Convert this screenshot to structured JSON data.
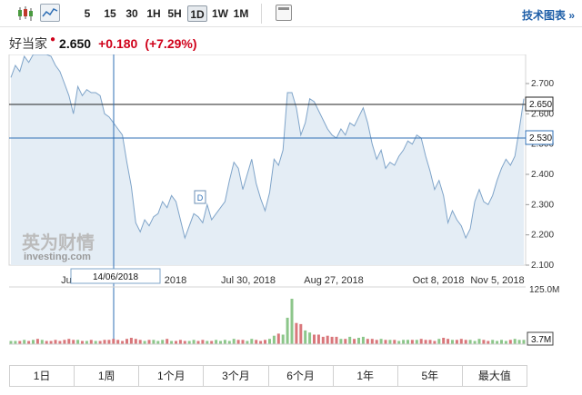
{
  "toolbar": {
    "intervals": [
      "5",
      "15",
      "30",
      "1H",
      "5H",
      "1D",
      "1W",
      "1M"
    ],
    "active_interval": "1D",
    "tech_chart_link": "技术图表 »"
  },
  "quote": {
    "name": "好当家",
    "price": "2.650",
    "change": "+0.180",
    "change_pct": "(+7.29%)",
    "up_color": "#d0021b"
  },
  "watermark": {
    "text": "英为财情",
    "sub": "investing.com"
  },
  "crosshair": {
    "date_label": "14/06/2018",
    "price_label": "2.530"
  },
  "last_price_label": "2.650",
  "marker_label": "D",
  "range_tabs": [
    "1日",
    "1周",
    "1个月",
    "3个月",
    "6个月",
    "1年",
    "5年",
    "最大值"
  ],
  "chart_data": {
    "type": "area",
    "price_axis": {
      "ticks": [
        "2.700",
        "2.600",
        "2.500",
        "2.400",
        "2.300",
        "2.200",
        "2.100"
      ],
      "ylim": [
        2.1,
        2.7
      ]
    },
    "x_tick_labels": [
      "Jun",
      "2018",
      "Jul 30, 2018",
      "Aug 27, 2018",
      "Oct 8, 2018",
      "Nov 5, 2018"
    ],
    "volume_axis": {
      "ticks": [
        "125.0M",
        "3.7M"
      ]
    },
    "price_series": [
      2.72,
      2.76,
      2.74,
      2.79,
      2.77,
      2.82,
      2.8,
      2.84,
      2.81,
      2.79,
      2.76,
      2.74,
      2.7,
      2.66,
      2.6,
      2.69,
      2.66,
      2.68,
      2.67,
      2.67,
      2.66,
      2.6,
      2.59,
      2.57,
      2.55,
      2.53,
      2.44,
      2.36,
      2.24,
      2.21,
      2.25,
      2.23,
      2.26,
      2.27,
      2.31,
      2.29,
      2.33,
      2.31,
      2.25,
      2.19,
      2.23,
      2.27,
      2.26,
      2.24,
      2.3,
      2.25,
      2.27,
      2.29,
      2.31,
      2.38,
      2.44,
      2.42,
      2.35,
      2.4,
      2.45,
      2.37,
      2.32,
      2.28,
      2.34,
      2.45,
      2.43,
      2.48,
      2.67,
      2.67,
      2.62,
      2.53,
      2.57,
      2.65,
      2.64,
      2.61,
      2.58,
      2.55,
      2.53,
      2.52,
      2.55,
      2.53,
      2.57,
      2.56,
      2.59,
      2.62,
      2.57,
      2.5,
      2.45,
      2.48,
      2.42,
      2.44,
      2.43,
      2.46,
      2.48,
      2.51,
      2.5,
      2.53,
      2.52,
      2.46,
      2.41,
      2.35,
      2.38,
      2.33,
      2.24,
      2.28,
      2.25,
      2.23,
      2.19,
      2.22,
      2.31,
      2.35,
      2.31,
      2.3,
      2.33,
      2.38,
      2.42,
      2.45,
      2.43,
      2.46,
      2.55,
      2.65
    ],
    "volume_series": [
      3,
      3,
      3,
      4,
      3,
      4,
      5,
      4,
      3,
      3,
      4,
      3,
      4,
      5,
      4,
      4,
      3,
      3,
      4,
      3,
      3,
      4,
      4,
      5,
      4,
      3,
      5,
      6,
      5,
      4,
      3,
      4,
      4,
      3,
      4,
      5,
      3,
      3,
      4,
      3,
      3,
      4,
      3,
      4,
      3,
      3,
      4,
      3,
      4,
      3,
      5,
      4,
      4,
      3,
      5,
      4,
      3,
      4,
      5,
      8,
      10,
      9,
      25,
      43,
      20,
      19,
      13,
      11,
      9,
      9,
      7,
      8,
      7,
      7,
      5,
      5,
      7,
      5,
      6,
      7,
      5,
      5,
      4,
      5,
      4,
      4,
      4,
      3,
      4,
      4,
      4,
      4,
      5,
      4,
      4,
      3,
      5,
      6,
      5,
      4,
      4,
      5,
      4,
      4,
      3,
      5,
      4,
      3,
      4,
      3,
      4,
      3,
      4,
      5,
      4,
      4
    ]
  }
}
